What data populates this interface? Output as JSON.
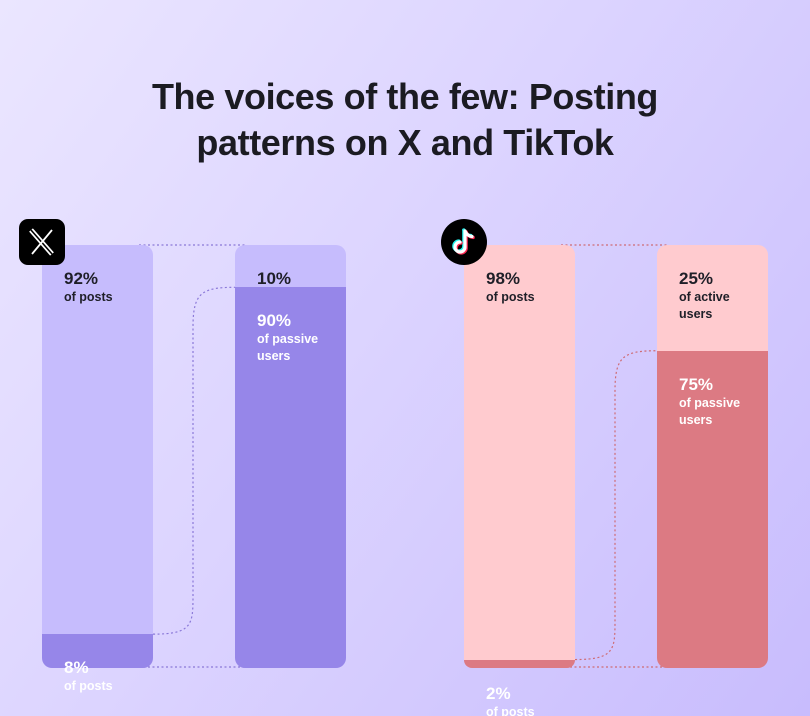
{
  "title_line1": "The voices of the few: Posting",
  "title_line2": "patterns on X and TikTok",
  "icons": {
    "x_logo": "x-logo-icon",
    "tiktok_logo": "tiktok-logo-icon"
  },
  "colors": {
    "x_light": "#c6bcfd",
    "x_dark": "#9686e9",
    "x_connector": "#8a78d8",
    "tiktok_light": "#ffcbcf",
    "tiktok_dark": "#dc7a83",
    "tiktok_connector": "#cf6c74"
  },
  "chart_data": [
    {
      "type": "bar",
      "platform": "X",
      "bars": [
        {
          "segments": [
            {
              "value": 92,
              "pct_label": "92%",
              "label": "of posts"
            },
            {
              "value": 8,
              "pct_label": "8%",
              "label": "of posts"
            }
          ]
        },
        {
          "segments": [
            {
              "value": 10,
              "pct_label": "10%",
              "label": "of active\nusers"
            },
            {
              "value": 90,
              "pct_label": "90%",
              "label": "of passive\nusers"
            }
          ]
        }
      ]
    },
    {
      "type": "bar",
      "platform": "TikTok",
      "bars": [
        {
          "segments": [
            {
              "value": 98,
              "pct_label": "98%",
              "label": "of posts"
            },
            {
              "value": 2,
              "pct_label": "2%",
              "label": "of posts"
            }
          ]
        },
        {
          "segments": [
            {
              "value": 25,
              "pct_label": "25%",
              "label": "of active\nusers"
            },
            {
              "value": 75,
              "pct_label": "75%",
              "label": "of passive\nusers"
            }
          ]
        }
      ]
    }
  ]
}
